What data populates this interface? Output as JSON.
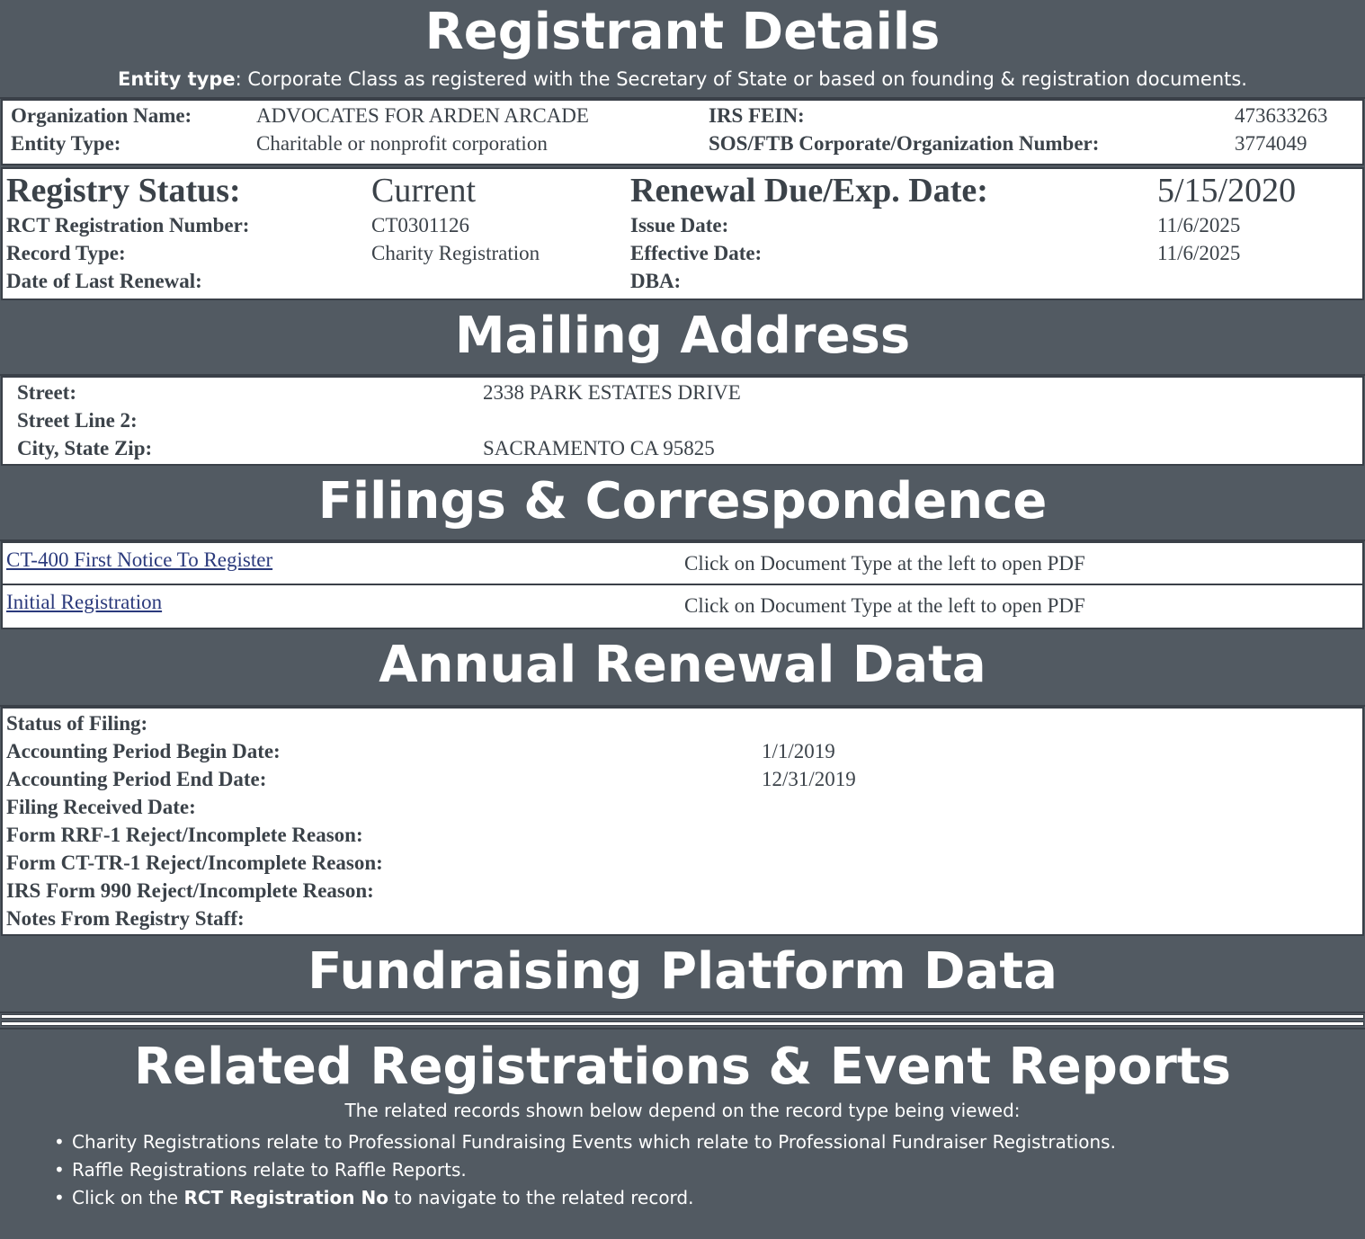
{
  "registrant": {
    "title": "Registrant Details",
    "entity_note_label": "Entity type",
    "entity_note_text": ": Corporate Class as registered with the Secretary of State or based on founding & registration documents.",
    "org_name_label": "Organization Name:",
    "org_name": "ADVOCATES FOR ARDEN ARCADE",
    "entity_type_label": "Entity Type:",
    "entity_type": "Charitable or nonprofit corporation",
    "fein_label": "IRS FEIN:",
    "fein": "473633263",
    "sos_label": "SOS/FTB Corporate/Organization Number:",
    "sos": "3774049"
  },
  "registry": {
    "status_label": "Registry Status:",
    "status": "Current",
    "renewal_label": "Renewal Due/Exp. Date:",
    "renewal": "5/15/2020",
    "rct_label": "RCT Registration Number:",
    "rct": "CT0301126",
    "issue_label": "Issue Date:",
    "issue": "11/6/2025",
    "record_type_label": "Record Type:",
    "record_type": "Charity Registration",
    "effective_label": "Effective Date:",
    "effective": "11/6/2025",
    "last_renewal_label": "Date of Last Renewal:",
    "dba_label": "DBA:"
  },
  "mailing": {
    "title": "Mailing Address",
    "street_label": "Street:",
    "street": "2338 PARK ESTATES DRIVE",
    "street2_label": "Street Line 2:",
    "city_label": "City, State Zip:",
    "city": "SACRAMENTO CA 95825"
  },
  "filings": {
    "title": "Filings & Correspondence",
    "items": [
      {
        "link": "CT-400 First Notice To Register",
        "note": "Click on Document Type at the left to open PDF"
      },
      {
        "link": "Initial Registration",
        "note": "Click on Document Type at the left to open PDF"
      }
    ]
  },
  "annual": {
    "title": "Annual Renewal Data",
    "rows": [
      {
        "label": "Status of Filing:",
        "value": ""
      },
      {
        "label": "Accounting Period Begin Date:",
        "value": "1/1/2019"
      },
      {
        "label": "Accounting Period End Date:",
        "value": "12/31/2019"
      },
      {
        "label": "Filing Received Date:",
        "value": ""
      },
      {
        "label": "Form RRF-1 Reject/Incomplete Reason:",
        "value": ""
      },
      {
        "label": "Form CT-TR-1 Reject/Incomplete Reason:",
        "value": ""
      },
      {
        "label": "IRS Form 990 Reject/Incomplete Reason:",
        "value": ""
      },
      {
        "label": "Notes From Registry Staff:",
        "value": ""
      }
    ]
  },
  "fundraising": {
    "title": "Fundraising Platform Data"
  },
  "related": {
    "title": "Related Registrations & Event Reports",
    "intro": "The related records shown below depend on the record type being viewed:",
    "bullet1": "Charity Registrations relate to Professional Fundraising Events which relate to Professional Fundraiser Registrations.",
    "bullet2": "Raffle Registrations relate to Raffle Reports.",
    "bullet3_pre": "Click on the ",
    "bullet3_bold": "RCT Registration No",
    "bullet3_post": " to navigate to the related record."
  }
}
